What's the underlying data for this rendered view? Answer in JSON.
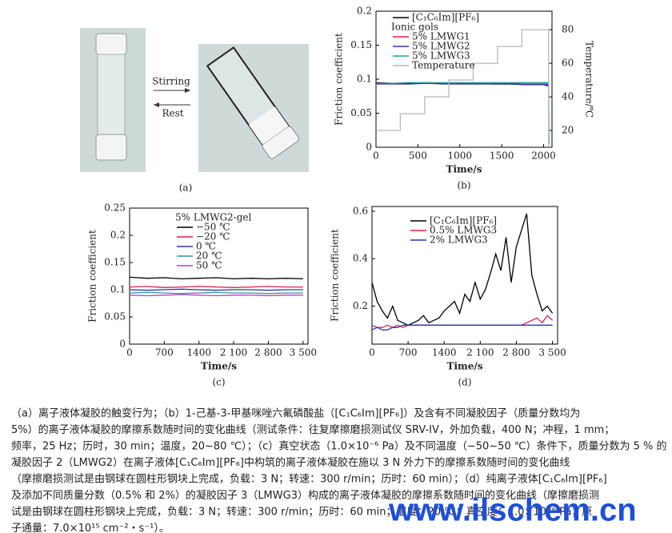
{
  "photo": {
    "arrow_labels": [
      "Stirring",
      "Rest"
    ],
    "panel_label": "(a)"
  },
  "chart_data": [
    {
      "type": "line",
      "panel_label": "(b)",
      "xlabel": "Time/s",
      "ylabel": "Friction coefficient",
      "y2label": "Temperature/℃",
      "legend_title": "Ionic gols",
      "xlim": [
        0,
        2100
      ],
      "xticks": [
        0,
        500,
        1000,
        1500,
        2000
      ],
      "ylim": [
        0,
        0.2
      ],
      "yticks": [
        0,
        0.05,
        0.1,
        0.15,
        0.2
      ],
      "y2lim": [
        10,
        91
      ],
      "y2ticks": [
        20,
        40,
        60,
        80
      ],
      "series": [
        {
          "name": "[C₁C₆Im][PF₆]",
          "color": "#000000",
          "x": [
            0,
            200,
            400,
            600,
            800,
            1000,
            1200,
            1400,
            1600,
            1800,
            2000,
            2060,
            2065
          ],
          "values": [
            0.095,
            0.094,
            0.094,
            0.095,
            0.094,
            0.093,
            0.094,
            0.093,
            0.093,
            0.092,
            0.092,
            0.09,
            null
          ]
        },
        {
          "name": "5% LMWG1",
          "color": "#d2234a",
          "x": [
            0,
            200,
            400,
            600,
            800,
            1000,
            1200,
            1400,
            1600,
            1800,
            2000,
            2060,
            2065
          ],
          "values": [
            0.094,
            0.094,
            0.095,
            0.094,
            0.094,
            0.094,
            0.094,
            0.094,
            0.094,
            0.094,
            0.094,
            0.094,
            null
          ]
        },
        {
          "name": "5% LMWG2",
          "color": "#2b3a9b",
          "x": [
            0,
            200,
            400,
            600,
            800,
            1000,
            1200,
            1400,
            1600,
            1800,
            2000,
            2060,
            2065
          ],
          "values": [
            0.093,
            0.093,
            0.093,
            0.094,
            0.093,
            0.093,
            0.093,
            0.093,
            0.093,
            0.092,
            0.092,
            0.092,
            null
          ]
        },
        {
          "name": "5% LMWG3",
          "color": "#2a9a9a",
          "x": [
            0,
            200,
            400,
            600,
            800,
            1000,
            1200,
            1400,
            1600,
            1800,
            2000,
            2060,
            2065
          ],
          "values": [
            0.094,
            0.094,
            0.095,
            0.095,
            0.095,
            0.095,
            0.095,
            0.095,
            0.095,
            0.095,
            0.095,
            0.095,
            0.005
          ]
        },
        {
          "name": "Temperature",
          "color": "#b8b8b8",
          "axis": "y2",
          "x": [
            0,
            290,
            290,
            580,
            580,
            870,
            870,
            1160,
            1160,
            1450,
            1450,
            1740,
            1740,
            2060,
            2060
          ],
          "values": [
            20,
            20,
            30,
            30,
            40,
            40,
            50,
            50,
            60,
            60,
            70,
            70,
            80,
            80,
            10
          ]
        }
      ]
    },
    {
      "type": "line",
      "panel_label": "(c)",
      "xlabel": "Time/s",
      "ylabel": "Friction coefficient",
      "legend_title": "5% LMWG2-gel",
      "xlim": [
        0,
        3600
      ],
      "xticks": [
        0,
        700,
        1400,
        {
          "value": 2100,
          "label": "2 100"
        },
        {
          "value": 2800,
          "label": "2 800"
        },
        {
          "value": 3500,
          "label": "3 500"
        }
      ],
      "ylim": [
        0,
        0.25
      ],
      "yticks": [
        0,
        0.05,
        0.1,
        0.15,
        0.2,
        0.25
      ],
      "series": [
        {
          "name": "−50 ℃",
          "color": "#000000",
          "x": [
            0,
            350,
            700,
            1050,
            1400,
            1750,
            2100,
            2450,
            2800,
            3150,
            3500
          ],
          "values": [
            0.123,
            0.121,
            0.122,
            0.12,
            0.121,
            0.122,
            0.12,
            0.121,
            0.12,
            0.121,
            0.12
          ]
        },
        {
          "name": "−20 ℃",
          "color": "#d2234a",
          "x": [
            0,
            350,
            700,
            1050,
            1400,
            1750,
            2100,
            2450,
            2800,
            3150,
            3500
          ],
          "values": [
            0.105,
            0.106,
            0.104,
            0.105,
            0.106,
            0.105,
            0.104,
            0.105,
            0.106,
            0.105,
            0.105
          ]
        },
        {
          "name": "0 ℃",
          "color": "#2b3a9b",
          "x": [
            0,
            350,
            700,
            1050,
            1400,
            1750,
            2100,
            2450,
            2800,
            3150,
            3500
          ],
          "values": [
            0.1,
            0.099,
            0.1,
            0.101,
            0.1,
            0.099,
            0.1,
            0.1,
            0.099,
            0.1,
            0.1
          ]
        },
        {
          "name": "20 ℃",
          "color": "#2a9a9a",
          "x": [
            0,
            350,
            700,
            1050,
            1400,
            1750,
            2100,
            2450,
            2800,
            3150,
            3500
          ],
          "values": [
            0.094,
            0.095,
            0.094,
            0.093,
            0.094,
            0.095,
            0.094,
            0.094,
            0.093,
            0.094,
            0.094
          ]
        },
        {
          "name": "50 ℃",
          "color": "#c03cc0",
          "x": [
            0,
            350,
            700,
            1050,
            1400,
            1750,
            2100,
            2450,
            2800,
            3150,
            3500
          ],
          "values": [
            0.09,
            0.089,
            0.09,
            0.091,
            0.09,
            0.089,
            0.09,
            0.09,
            0.089,
            0.09,
            0.09
          ]
        }
      ]
    },
    {
      "type": "line",
      "panel_label": "(d)",
      "xlabel": "Time/s",
      "ylabel": "Friction coefficient",
      "xlim": [
        0,
        3600
      ],
      "xticks": [
        0,
        700,
        1400,
        {
          "value": 2100,
          "label": "2 100"
        },
        {
          "value": 2800,
          "label": "2 800"
        },
        {
          "value": 3500,
          "label": "3 500"
        }
      ],
      "ylim": [
        0.04,
        0.62
      ],
      "yticks": [
        0.2,
        0.4,
        0.6
      ],
      "series": [
        {
          "name": "[C₁C₆Im][PF₆]",
          "color": "#000000",
          "x": [
            0,
            100,
            200,
            300,
            400,
            500,
            600,
            700,
            800,
            900,
            1000,
            1100,
            1200,
            1300,
            1400,
            1500,
            1600,
            1700,
            1800,
            1900,
            2000,
            2100,
            2200,
            2300,
            2400,
            2500,
            2600,
            2700,
            2800,
            2900,
            3000,
            3100,
            3200,
            3300,
            3400,
            3500
          ],
          "values": [
            0.3,
            0.22,
            0.18,
            0.15,
            0.2,
            0.14,
            0.13,
            0.12,
            0.13,
            0.14,
            0.16,
            0.13,
            0.14,
            0.15,
            0.18,
            0.2,
            0.22,
            0.17,
            0.25,
            0.22,
            0.3,
            0.23,
            0.27,
            0.34,
            0.42,
            0.35,
            0.49,
            0.3,
            0.45,
            0.52,
            0.59,
            0.33,
            0.25,
            0.18,
            0.2,
            0.17
          ]
        },
        {
          "name": "0.5% LMWG3",
          "color": "#d2234a",
          "x": [
            0,
            100,
            200,
            300,
            400,
            500,
            600,
            700,
            800,
            900,
            1000,
            1100,
            1200,
            1300,
            1400,
            1500,
            1600,
            1700,
            1800,
            1900,
            2000,
            2100,
            2200,
            2300,
            2400,
            2500,
            2600,
            2700,
            2800,
            2900,
            3000,
            3100,
            3200,
            3300,
            3400,
            3500
          ],
          "values": [
            0.12,
            0.11,
            0.11,
            0.12,
            0.11,
            0.12,
            0.11,
            0.12,
            0.12,
            0.12,
            0.12,
            0.12,
            0.12,
            0.12,
            0.12,
            0.12,
            0.12,
            0.12,
            0.12,
            0.12,
            0.12,
            0.12,
            0.12,
            0.12,
            0.12,
            0.12,
            0.12,
            0.12,
            0.12,
            0.12,
            0.13,
            0.14,
            0.15,
            0.13,
            0.16,
            0.14
          ]
        },
        {
          "name": "2%   LMWG3",
          "color": "#2b3a9b",
          "x": [
            0,
            100,
            200,
            300,
            400,
            500,
            600,
            700,
            800,
            900,
            1000,
            1100,
            1200,
            1300,
            1400,
            1500,
            1600,
            1700,
            1800,
            1900,
            2000,
            2100,
            2200,
            2300,
            2400,
            2500,
            2600,
            2700,
            2800,
            2900,
            3000,
            3100,
            3200,
            3300,
            3400,
            3500
          ],
          "values": [
            0.1,
            0.11,
            0.1,
            0.1,
            0.11,
            0.11,
            0.12,
            0.12,
            0.12,
            0.12,
            0.12,
            0.12,
            0.12,
            0.12,
            0.12,
            0.12,
            0.12,
            0.12,
            0.12,
            0.12,
            0.12,
            0.12,
            0.12,
            0.12,
            0.12,
            0.12,
            0.12,
            0.12,
            0.12,
            0.12,
            0.12,
            0.12,
            0.12,
            0.12,
            0.12,
            0.12
          ]
        }
      ]
    }
  ],
  "caption": [
    "（a）离子液体凝胶的触变行为；（b）1-己基-3-甲基咪唑六氟磷酸盐（[C₁C₆Im][PF₆]）及含有不同凝胶因子（质量分数均为",
    "5%）的离子液体凝胶的摩擦系数随时间的变化曲线（测试条件：往复摩擦磨损测试仪 SRV-IV，外加负载，400 N；冲程，1 mm；",
    "频率，25 Hz；历时，30 min；温度，20~80 ℃）；（c）真空状态（1.0×10⁻⁶ Pa）及不同温度（−50~50 ℃）条件下，质量分数为 5 % 的",
    "凝胶因子 2（LMWG2）在离子液体[C₁C₆Im][PF₆]中构筑的离子液体凝胶在施以 3 N 外力下的摩擦系数随时间的变化曲线",
    "（摩擦磨损测试是由钢球在圆柱形钢块上完成，负载：3 N；转速：300 r/min；历时：60 min）；（d）纯离子液体[C₁C₆Im][PF₆]",
    "及添加不同质量分数（0.5% 和 2%）的凝胶因子 3（LMWG3）构成的离子液体凝胶的摩擦系数随时间的变化曲线（摩擦磨损测",
    "试是由钢球在圆柱形钢块上完成，负载：3 N；转速：300 r/min；历时：60 min；温度：20 ℃；真空度：1.0×10⁻⁶ Pa；原",
    "子通量：7.0×10¹⁵ cm⁻²・s⁻¹）。"
  ],
  "watermark": "www.ilschem.cn"
}
